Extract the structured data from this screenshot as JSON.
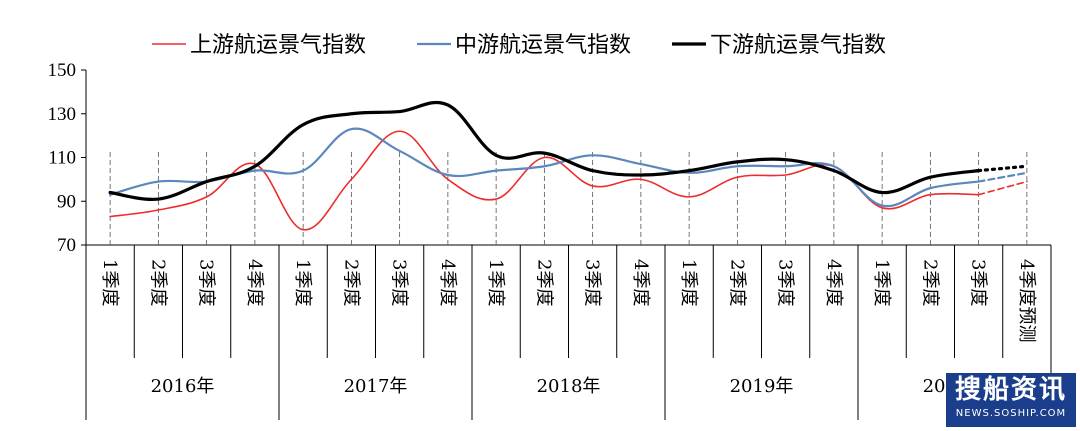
{
  "chart_data": {
    "type": "line",
    "categories": [
      "1季度",
      "2季度",
      "3季度",
      "4季度",
      "1季度",
      "2季度",
      "3季度",
      "4季度",
      "1季度",
      "2季度",
      "3季度",
      "4季度",
      "1季度",
      "2季度",
      "3季度",
      "4季度",
      "1季度",
      "2季度",
      "3季度",
      "4季度预测"
    ],
    "years": [
      {
        "label": "2016年",
        "start": 0,
        "count": 4
      },
      {
        "label": "2017年",
        "start": 4,
        "count": 4
      },
      {
        "label": "2018年",
        "start": 8,
        "count": 4
      },
      {
        "label": "2019年",
        "start": 12,
        "count": 4
      },
      {
        "label": "2020年",
        "start": 16,
        "count": 4
      }
    ],
    "ylim": [
      70,
      150
    ],
    "yticks": [
      70,
      90,
      110,
      130,
      150
    ],
    "series": [
      {
        "name": "上游航运景气指数",
        "color": "#ee2c2c",
        "width": 1.6,
        "values": [
          83,
          86,
          92,
          107,
          77,
          100,
          122,
          100,
          91,
          110,
          97,
          100,
          92,
          101,
          102,
          106,
          87,
          93,
          93,
          99
        ],
        "forecast_from": 18
      },
      {
        "name": "中游航运景气指数",
        "color": "#5b87bd",
        "width": 2.2,
        "values": [
          93,
          99,
          99,
          104,
          104,
          123,
          113,
          102,
          104,
          106,
          111,
          107,
          103,
          106,
          106,
          106,
          88,
          96,
          99,
          103
        ],
        "forecast_from": 18
      },
      {
        "name": "下游航运景气指数",
        "color": "#000000",
        "width": 3.2,
        "values": [
          94,
          91,
          99,
          106,
          125,
          130,
          131,
          134,
          111,
          112,
          104,
          102,
          104,
          108,
          109,
          104,
          94,
          101,
          104,
          106
        ],
        "forecast_from": 18,
        "forecast_style": "dotted"
      }
    ],
    "grid": false,
    "legend": "top"
  },
  "watermark": {
    "main": "搜船资讯",
    "sub": "NEWS.SOSHIP.COM"
  }
}
